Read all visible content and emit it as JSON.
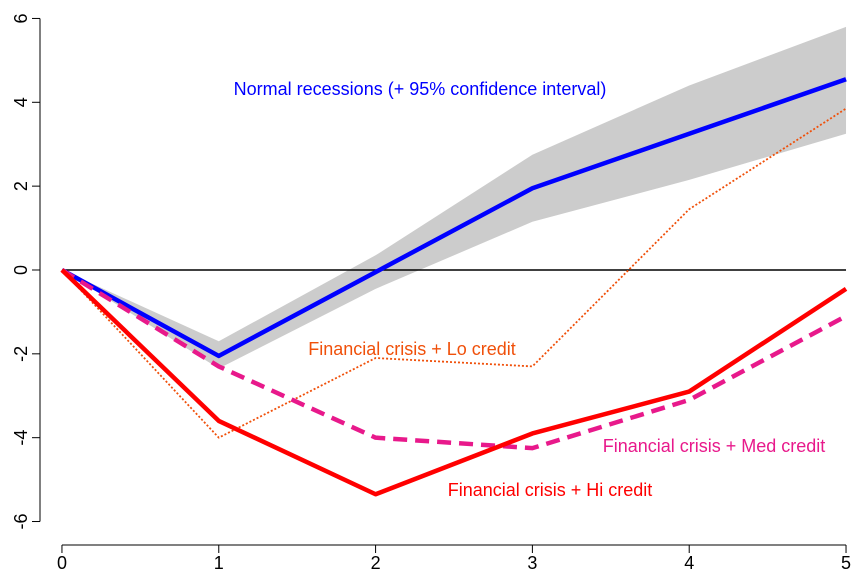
{
  "chart_data": {
    "type": "line",
    "x": [
      0,
      1,
      2,
      3,
      4,
      5
    ],
    "xlim": [
      -0.14,
      5.07
    ],
    "xticks": [
      0,
      1,
      2,
      3,
      4,
      5
    ],
    "ylim": [
      -6.56,
      6.44
    ],
    "yticks": [
      -6,
      -4,
      -2,
      0,
      2,
      4,
      6
    ],
    "hline": 0,
    "band": {
      "upper": [
        0,
        -1.7,
        0.35,
        2.75,
        4.4,
        5.8
      ],
      "lower": [
        0,
        -2.35,
        -0.45,
        1.15,
        2.15,
        3.25
      ],
      "color": "#cccccc"
    },
    "series": [
      {
        "name": "Normal recessions (+ 95% confidence interval)",
        "color": "#0000ff",
        "style": "solid",
        "values": [
          0,
          -2.05,
          -0.05,
          1.95,
          3.25,
          4.55
        ]
      },
      {
        "name": "Financial crisis + Lo credit",
        "color": "#f0500a",
        "style": "dotted",
        "values": [
          0,
          -4.0,
          -2.1,
          -2.3,
          1.45,
          3.85
        ]
      },
      {
        "name": "Financial crisis + Med credit",
        "color": "#e8198b",
        "style": "dashed",
        "values": [
          0,
          -2.3,
          -4.0,
          -4.25,
          -3.1,
          -1.1
        ]
      },
      {
        "name": "Financial crisis + Hi credit",
        "color": "#ff0000",
        "style": "solid",
        "values": [
          0,
          -3.6,
          -5.35,
          -3.9,
          -2.9,
          -0.45
        ]
      }
    ]
  }
}
